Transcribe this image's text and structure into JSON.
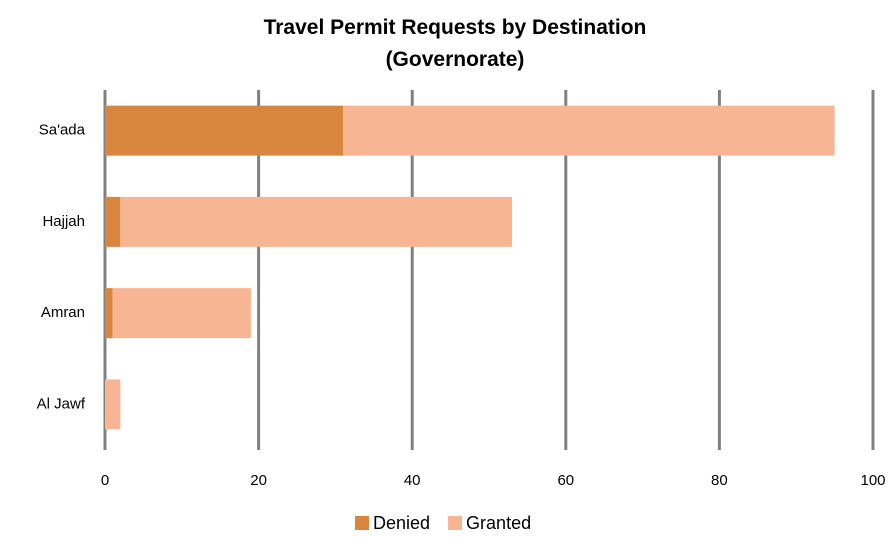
{
  "chart_data": {
    "type": "stacked_barh",
    "title": "Travel Permit Requests by Destination (Governorate)",
    "categories": [
      "Sa'ada",
      "Hajjah",
      "Amran",
      "Al Jawf"
    ],
    "series": [
      {
        "name": "Denied",
        "color": "#d9873e",
        "values": [
          31,
          2,
          1,
          0
        ]
      },
      {
        "name": "Granted",
        "color": "#f8b593",
        "values": [
          64,
          51,
          18,
          2
        ]
      }
    ],
    "xlim": [
      0,
      100
    ],
    "xticks": [
      0,
      20,
      40,
      60,
      80,
      100
    ],
    "grid": true,
    "legend": "bottom"
  }
}
